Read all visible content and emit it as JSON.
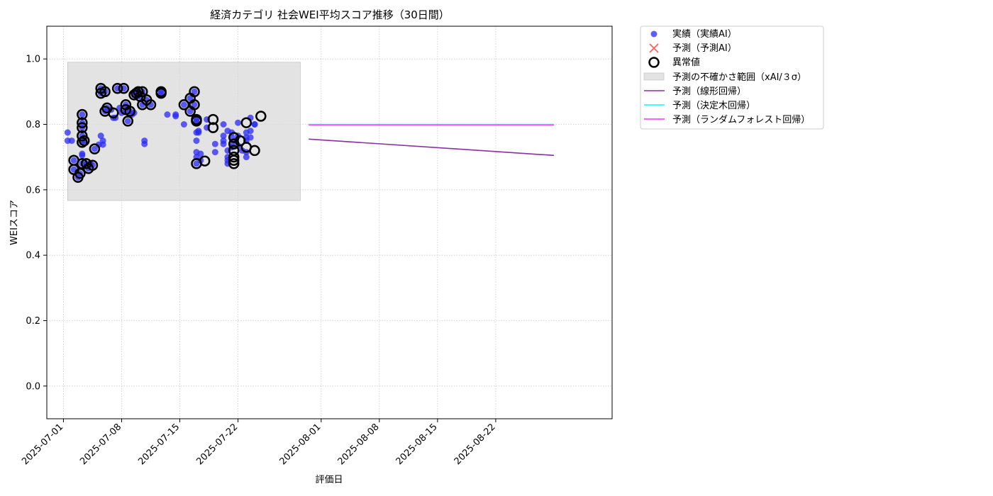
{
  "chart_data": {
    "type": "scatter",
    "title": "経済カテゴリ 社会WEI平均スコア推移（30日間）",
    "xlabel": "評価日",
    "ylabel": "WEIスコア",
    "xlim": [
      "2025-06-29",
      "2025-09-05"
    ],
    "ylim": [
      -0.1,
      1.1
    ],
    "x_ticks": [
      "2025-07-01",
      "2025-07-08",
      "2025-07-15",
      "2025-07-22",
      "2025-08-01",
      "2025-08-08",
      "2025-08-15",
      "2025-08-22"
    ],
    "y_ticks": [
      "0.0",
      "0.2",
      "0.4",
      "0.6",
      "0.8",
      "1.0"
    ],
    "grid": true,
    "legend_position": "outside-top-right",
    "colors": {
      "actual": "#2a2af5",
      "predicted": "#ff3030",
      "anomaly": "#000000",
      "uncertainty": "#d9d9d9",
      "linear": "#8b2fa0",
      "tree": "#00ffff",
      "forest": "#ff2aff"
    },
    "legend": [
      {
        "key": "actual",
        "label": "実績（実績AI）"
      },
      {
        "key": "predicted",
        "label": "予測（予測AI）"
      },
      {
        "key": "anomaly",
        "label": "異常値"
      },
      {
        "key": "uncertainty",
        "label": "予測の不確かさ範囲（xAI/３σ）"
      },
      {
        "key": "linear",
        "label": "予測（線形回帰）"
      },
      {
        "key": "tree",
        "label": "予測（決定木回帰）"
      },
      {
        "key": "forest",
        "label": "予測（ランダムフォレスト回帰）"
      }
    ],
    "uncertainty_band": {
      "x": [
        "2025-07-01 12:00",
        "2025-07-29 12:00"
      ],
      "y": [
        0.567,
        0.99
      ]
    },
    "series": [
      {
        "key": "actual",
        "points": [
          [
            "2025-07-01 12:00",
            0.775
          ],
          [
            "2025-07-01 12:00",
            0.75
          ],
          [
            "2025-07-02 00:00",
            0.75
          ],
          [
            "2025-07-02 06:00",
            0.69
          ],
          [
            "2025-07-02 06:00",
            0.662
          ],
          [
            "2025-07-02 18:00",
            0.638
          ],
          [
            "2025-07-03 00:00",
            0.65
          ],
          [
            "2025-07-03 06:00",
            0.83
          ],
          [
            "2025-07-03 06:00",
            0.805
          ],
          [
            "2025-07-03 06:00",
            0.79
          ],
          [
            "2025-07-03 06:00",
            0.765
          ],
          [
            "2025-07-03 06:00",
            0.745
          ],
          [
            "2025-07-03 06:00",
            0.71
          ],
          [
            "2025-07-03 06:00",
            0.705
          ],
          [
            "2025-07-03 06:00",
            0.68
          ],
          [
            "2025-07-03 12:00",
            0.75
          ],
          [
            "2025-07-03 18:00",
            0.68
          ],
          [
            "2025-07-04 00:00",
            0.665
          ],
          [
            "2025-07-04 06:00",
            0.68
          ],
          [
            "2025-07-04 12:00",
            0.675
          ],
          [
            "2025-07-04 18:00",
            0.725
          ],
          [
            "2025-07-05 06:00",
            0.738
          ],
          [
            "2025-07-05 12:00",
            0.765
          ],
          [
            "2025-07-05 12:00",
            0.91
          ],
          [
            "2025-07-05 12:00",
            0.895
          ],
          [
            "2025-07-05 18:00",
            0.75
          ],
          [
            "2025-07-05 18:00",
            0.738
          ],
          [
            "2025-07-06 00:00",
            0.9
          ],
          [
            "2025-07-06 00:00",
            0.84
          ],
          [
            "2025-07-06 06:00",
            0.85
          ],
          [
            "2025-07-06 18:00",
            0.845
          ],
          [
            "2025-07-07 00:00",
            0.82
          ],
          [
            "2025-07-07 06:00",
            0.82
          ],
          [
            "2025-07-07 12:00",
            0.91
          ],
          [
            "2025-07-07 18:00",
            0.85
          ],
          [
            "2025-07-08 00:00",
            0.835
          ],
          [
            "2025-07-08 06:00",
            0.91
          ],
          [
            "2025-07-08 12:00",
            0.86
          ],
          [
            "2025-07-08 12:00",
            0.845
          ],
          [
            "2025-07-08 18:00",
            0.81
          ],
          [
            "2025-07-09 00:00",
            0.84
          ],
          [
            "2025-07-09 06:00",
            0.83
          ],
          [
            "2025-07-09 12:00",
            0.89
          ],
          [
            "2025-07-09 12:00",
            0.835
          ],
          [
            "2025-07-09 18:00",
            0.895
          ],
          [
            "2025-07-10 00:00",
            0.9
          ],
          [
            "2025-07-10 06:00",
            0.885
          ],
          [
            "2025-07-10 12:00",
            0.9
          ],
          [
            "2025-07-10 12:00",
            0.86
          ],
          [
            "2025-07-10 18:00",
            0.75
          ],
          [
            "2025-07-10 18:00",
            0.74
          ],
          [
            "2025-07-11 00:00",
            0.875
          ],
          [
            "2025-07-11 12:00",
            0.86
          ],
          [
            "2025-07-12 18:00",
            0.9
          ],
          [
            "2025-07-12 18:00",
            0.895
          ],
          [
            "2025-07-13 12:00",
            0.83
          ],
          [
            "2025-07-14 12:00",
            0.83
          ],
          [
            "2025-07-14 12:00",
            0.825
          ],
          [
            "2025-07-15 12:00",
            0.86
          ],
          [
            "2025-07-15 12:00",
            0.8
          ],
          [
            "2025-07-16 06:00",
            0.88
          ],
          [
            "2025-07-16 06:00",
            0.84
          ],
          [
            "2025-07-16 18:00",
            0.9
          ],
          [
            "2025-07-16 18:00",
            0.86
          ],
          [
            "2025-07-17 00:00",
            0.815
          ],
          [
            "2025-07-17 00:00",
            0.81
          ],
          [
            "2025-07-17 00:00",
            0.775
          ],
          [
            "2025-07-17 00:00",
            0.75
          ],
          [
            "2025-07-17 00:00",
            0.715
          ],
          [
            "2025-07-17 00:00",
            0.7
          ],
          [
            "2025-07-17 00:00",
            0.68
          ],
          [
            "2025-07-17 06:00",
            0.78
          ],
          [
            "2025-07-17 06:00",
            0.775
          ],
          [
            "2025-07-17 12:00",
            0.71
          ],
          [
            "2025-07-17 12:00",
            0.69
          ],
          [
            "2025-07-18 06:00",
            0.815
          ],
          [
            "2025-07-18 06:00",
            0.79
          ],
          [
            "2025-07-19 06:00",
            0.74
          ],
          [
            "2025-07-19 06:00",
            0.715
          ],
          [
            "2025-07-20 06:00",
            0.8
          ],
          [
            "2025-07-20 06:00",
            0.765
          ],
          [
            "2025-07-20 06:00",
            0.75
          ],
          [
            "2025-07-20 06:00",
            0.74
          ],
          [
            "2025-07-20 18:00",
            0.78
          ],
          [
            "2025-07-20 18:00",
            0.72
          ],
          [
            "2025-07-20 18:00",
            0.7
          ],
          [
            "2025-07-20 18:00",
            0.69
          ],
          [
            "2025-07-20 18:00",
            0.68
          ],
          [
            "2025-07-21 06:00",
            0.775
          ],
          [
            "2025-07-21 06:00",
            0.76
          ],
          [
            "2025-07-21 06:00",
            0.74
          ],
          [
            "2025-07-21 06:00",
            0.73
          ],
          [
            "2025-07-21 18:00",
            0.75
          ],
          [
            "2025-07-22 00:00",
            0.765
          ],
          [
            "2025-07-22 00:00",
            0.805
          ],
          [
            "2025-07-22 00:00",
            0.735
          ],
          [
            "2025-07-22 12:00",
            0.72
          ],
          [
            "2025-07-23 00:00",
            0.775
          ],
          [
            "2025-07-23 00:00",
            0.76
          ],
          [
            "2025-07-23 00:00",
            0.75
          ],
          [
            "2025-07-23 00:00",
            0.715
          ],
          [
            "2025-07-23 00:00",
            0.7
          ],
          [
            "2025-07-23 12:00",
            0.78
          ],
          [
            "2025-07-23 12:00",
            0.76
          ],
          [
            "2025-07-23 12:00",
            0.82
          ],
          [
            "2025-07-24 00:00",
            0.8
          ],
          [
            "2025-07-24 00:00",
            0.8
          ]
        ]
      },
      {
        "key": "anomaly",
        "points": [
          [
            "2025-07-02 06:00",
            0.69
          ],
          [
            "2025-07-02 06:00",
            0.662
          ],
          [
            "2025-07-02 18:00",
            0.638
          ],
          [
            "2025-07-03 00:00",
            0.65
          ],
          [
            "2025-07-03 06:00",
            0.83
          ],
          [
            "2025-07-03 06:00",
            0.805
          ],
          [
            "2025-07-03 06:00",
            0.79
          ],
          [
            "2025-07-03 06:00",
            0.765
          ],
          [
            "2025-07-03 06:00",
            0.745
          ],
          [
            "2025-07-03 06:00",
            0.68
          ],
          [
            "2025-07-03 12:00",
            0.75
          ],
          [
            "2025-07-03 18:00",
            0.68
          ],
          [
            "2025-07-04 00:00",
            0.665
          ],
          [
            "2025-07-04 12:00",
            0.675
          ],
          [
            "2025-07-04 18:00",
            0.725
          ],
          [
            "2025-07-05 12:00",
            0.91
          ],
          [
            "2025-07-05 12:00",
            0.895
          ],
          [
            "2025-07-06 00:00",
            0.9
          ],
          [
            "2025-07-06 00:00",
            0.84
          ],
          [
            "2025-07-06 06:00",
            0.85
          ],
          [
            "2025-07-07 00:00",
            0.835
          ],
          [
            "2025-07-07 12:00",
            0.91
          ],
          [
            "2025-07-08 06:00",
            0.91
          ],
          [
            "2025-07-08 12:00",
            0.86
          ],
          [
            "2025-07-08 12:00",
            0.845
          ],
          [
            "2025-07-08 18:00",
            0.81
          ],
          [
            "2025-07-09 00:00",
            0.84
          ],
          [
            "2025-07-09 12:00",
            0.89
          ],
          [
            "2025-07-09 18:00",
            0.895
          ],
          [
            "2025-07-10 00:00",
            0.9
          ],
          [
            "2025-07-10 06:00",
            0.885
          ],
          [
            "2025-07-10 12:00",
            0.9
          ],
          [
            "2025-07-10 12:00",
            0.86
          ],
          [
            "2025-07-11 00:00",
            0.875
          ],
          [
            "2025-07-11 12:00",
            0.86
          ],
          [
            "2025-07-12 18:00",
            0.9
          ],
          [
            "2025-07-12 18:00",
            0.895
          ],
          [
            "2025-07-15 12:00",
            0.86
          ],
          [
            "2025-07-16 06:00",
            0.88
          ],
          [
            "2025-07-16 06:00",
            0.84
          ],
          [
            "2025-07-16 18:00",
            0.9
          ],
          [
            "2025-07-16 18:00",
            0.86
          ],
          [
            "2025-07-17 00:00",
            0.815
          ],
          [
            "2025-07-17 00:00",
            0.81
          ],
          [
            "2025-07-17 00:00",
            0.68
          ],
          [
            "2025-07-18 00:00",
            0.688
          ],
          [
            "2025-07-19 00:00",
            0.815
          ],
          [
            "2025-07-19 00:00",
            0.79
          ],
          [
            "2025-07-21 12:00",
            0.76
          ],
          [
            "2025-07-21 12:00",
            0.74
          ],
          [
            "2025-07-21 12:00",
            0.72
          ],
          [
            "2025-07-21 12:00",
            0.7
          ],
          [
            "2025-07-21 12:00",
            0.69
          ],
          [
            "2025-07-21 12:00",
            0.68
          ],
          [
            "2025-07-22 06:00",
            0.75
          ],
          [
            "2025-07-23 00:00",
            0.805
          ],
          [
            "2025-07-23 00:00",
            0.73
          ],
          [
            "2025-07-24 00:00",
            0.72
          ],
          [
            "2025-07-24 18:00",
            0.825
          ]
        ]
      },
      {
        "key": "linear",
        "points": [
          [
            "2025-07-30 12:00",
            0.755
          ],
          [
            "2025-08-29 00:00",
            0.705
          ]
        ]
      },
      {
        "key": "tree",
        "points": [
          [
            "2025-07-30 12:00",
            0.8
          ],
          [
            "2025-08-29 00:00",
            0.8
          ]
        ]
      },
      {
        "key": "forest",
        "points": [
          [
            "2025-07-30 12:00",
            0.798
          ],
          [
            "2025-08-29 00:00",
            0.798
          ]
        ]
      }
    ]
  }
}
